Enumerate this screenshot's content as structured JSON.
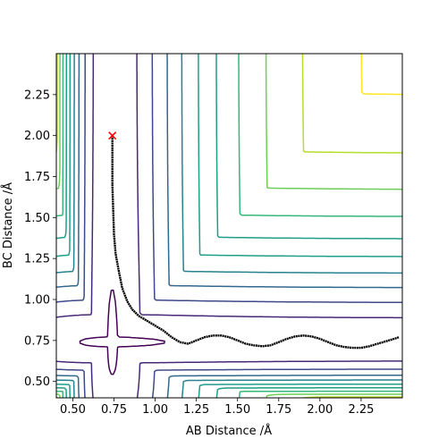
{
  "chart_data": {
    "type": "contour",
    "xlabel": "AB Distance /Å",
    "ylabel": "BC Distance /Å",
    "xlim": [
      0.4,
      2.5
    ],
    "ylim": [
      0.4,
      2.5
    ],
    "x_ticks": [
      0.5,
      0.75,
      1.0,
      1.25,
      1.5,
      1.75,
      2.0,
      2.25
    ],
    "x_tick_labels": [
      "0.50",
      "0.75",
      "1.00",
      "1.25",
      "1.50",
      "1.75",
      "2.00",
      "2.25"
    ],
    "y_ticks": [
      0.5,
      0.75,
      1.0,
      1.25,
      1.5,
      1.75,
      2.0,
      2.25
    ],
    "y_tick_labels": [
      "0.50",
      "0.75",
      "1.00",
      "1.25",
      "1.50",
      "1.75",
      "2.00",
      "2.25"
    ],
    "grid": false,
    "colormap": "viridis",
    "contour_levels": 12,
    "contour_colors": [
      "#440154",
      "#482878",
      "#3e4989",
      "#31688e",
      "#26828e",
      "#1f9e89",
      "#35b779",
      "#6ece58",
      "#b5de2b",
      "#fde725"
    ],
    "start_marker": {
      "x": 0.74,
      "y": 2.0,
      "symbol": "x",
      "color": "#ff0000"
    },
    "trajectory_color": "#000000",
    "trajectory": {
      "x": [
        0.74,
        0.74,
        0.74,
        0.745,
        0.75,
        0.76,
        0.78,
        0.8,
        0.83,
        0.86,
        0.9,
        0.95,
        1.0,
        1.05,
        1.1,
        1.15,
        1.2,
        1.25,
        1.3,
        1.35,
        1.4,
        1.45,
        1.5,
        1.55,
        1.6,
        1.65,
        1.7,
        1.75,
        1.8,
        1.85,
        1.9,
        1.95,
        2.0,
        2.05,
        2.1,
        2.15,
        2.2,
        2.25,
        2.3,
        2.35,
        2.4,
        2.45,
        2.48
      ],
      "y": [
        2.0,
        1.85,
        1.7,
        1.55,
        1.4,
        1.28,
        1.17,
        1.07,
        0.99,
        0.94,
        0.9,
        0.87,
        0.84,
        0.81,
        0.77,
        0.74,
        0.73,
        0.75,
        0.77,
        0.78,
        0.78,
        0.77,
        0.75,
        0.73,
        0.72,
        0.715,
        0.72,
        0.74,
        0.76,
        0.775,
        0.78,
        0.775,
        0.76,
        0.74,
        0.72,
        0.71,
        0.705,
        0.705,
        0.715,
        0.73,
        0.745,
        0.76,
        0.77
      ]
    }
  }
}
